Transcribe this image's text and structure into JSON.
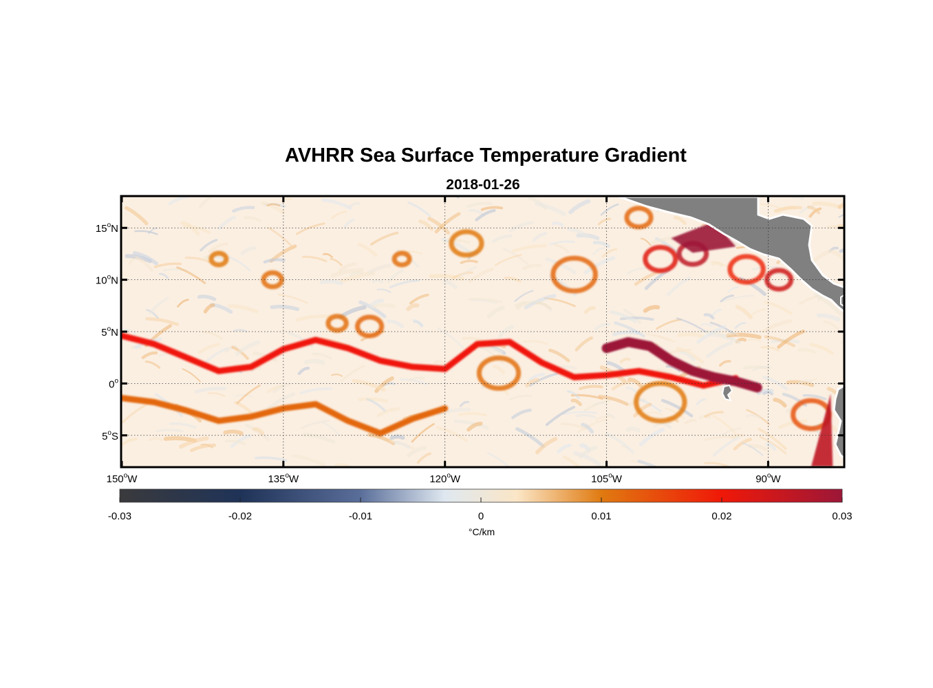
{
  "title": "AVHRR Sea Surface Temperature Gradient",
  "subtitle": "2018-01-26",
  "map": {
    "lon_range": [
      -150,
      -83
    ],
    "lat_range": [
      -8,
      18
    ],
    "lon_ticks": [
      {
        "deg": "150",
        "hemi": "W",
        "value": -150
      },
      {
        "deg": "135",
        "hemi": "W",
        "value": -135
      },
      {
        "deg": "120",
        "hemi": "W",
        "value": -120
      },
      {
        "deg": "105",
        "hemi": "W",
        "value": -105
      },
      {
        "deg": "90",
        "hemi": "W",
        "value": -90
      }
    ],
    "lat_ticks": [
      {
        "deg": "15",
        "hemi": "N",
        "value": 15
      },
      {
        "deg": "10",
        "hemi": "N",
        "value": 10
      },
      {
        "deg": "5",
        "hemi": "N",
        "value": 5
      },
      {
        "deg": "0",
        "hemi": "",
        "value": 0
      },
      {
        "deg": "5",
        "hemi": "S",
        "value": -5
      }
    ],
    "grid": "dotted",
    "land_color": "#808080"
  },
  "chart_data": {
    "type": "heatmap",
    "title": "AVHRR Sea Surface Temperature Gradient",
    "subtitle": "2018-01-26",
    "xlim": [
      -150,
      -83
    ],
    "ylim": [
      -8,
      18
    ],
    "colorbar": {
      "range": [
        -0.03,
        0.03
      ],
      "ticks": [
        "-0.03",
        "-0.02",
        "-0.01",
        "0",
        "0.01",
        "0.02",
        "0.03"
      ],
      "label": "°C/km",
      "colors": [
        "#3a3a3c",
        "#1f3358",
        "#5a6e9a",
        "#dfe8f0",
        "#fbe6c6",
        "#e07a10",
        "#f01808",
        "#9c1738"
      ]
    },
    "fronts": [
      {
        "lat": [
          4.6,
          3.8,
          2.5,
          1.2,
          1.6,
          3.3,
          4.2,
          3.4,
          2.2,
          1.6,
          1.4,
          3.8,
          4.0,
          2.0,
          0.6,
          0.8,
          1.2,
          0.6,
          -0.2,
          0.5
        ],
        "lon": [
          -150,
          -147,
          -144,
          -141,
          -138,
          -135,
          -132,
          -129,
          -126,
          -123,
          -120,
          -117,
          -114,
          -111,
          -108,
          -105,
          -102,
          -99,
          -96,
          -93
        ],
        "strength": 0.02
      },
      {
        "lat": [
          -1.4,
          -1.8,
          -2.6,
          -3.6,
          -3.2,
          -2.4,
          -2.0,
          -3.6,
          -4.8,
          -3.4,
          -2.4
        ],
        "lon": [
          -150,
          -147,
          -144,
          -141,
          -138,
          -135,
          -132,
          -129,
          -126,
          -123,
          -120
        ],
        "strength": 0.012
      },
      {
        "lat": [
          3.4,
          4.0,
          3.6,
          2.2,
          1.2,
          0.6,
          0.2,
          -0.4
        ],
        "lon": [
          -105,
          -103,
          -101,
          -99,
          -97,
          -95,
          -93,
          -91
        ],
        "strength": 0.03
      }
    ]
  }
}
